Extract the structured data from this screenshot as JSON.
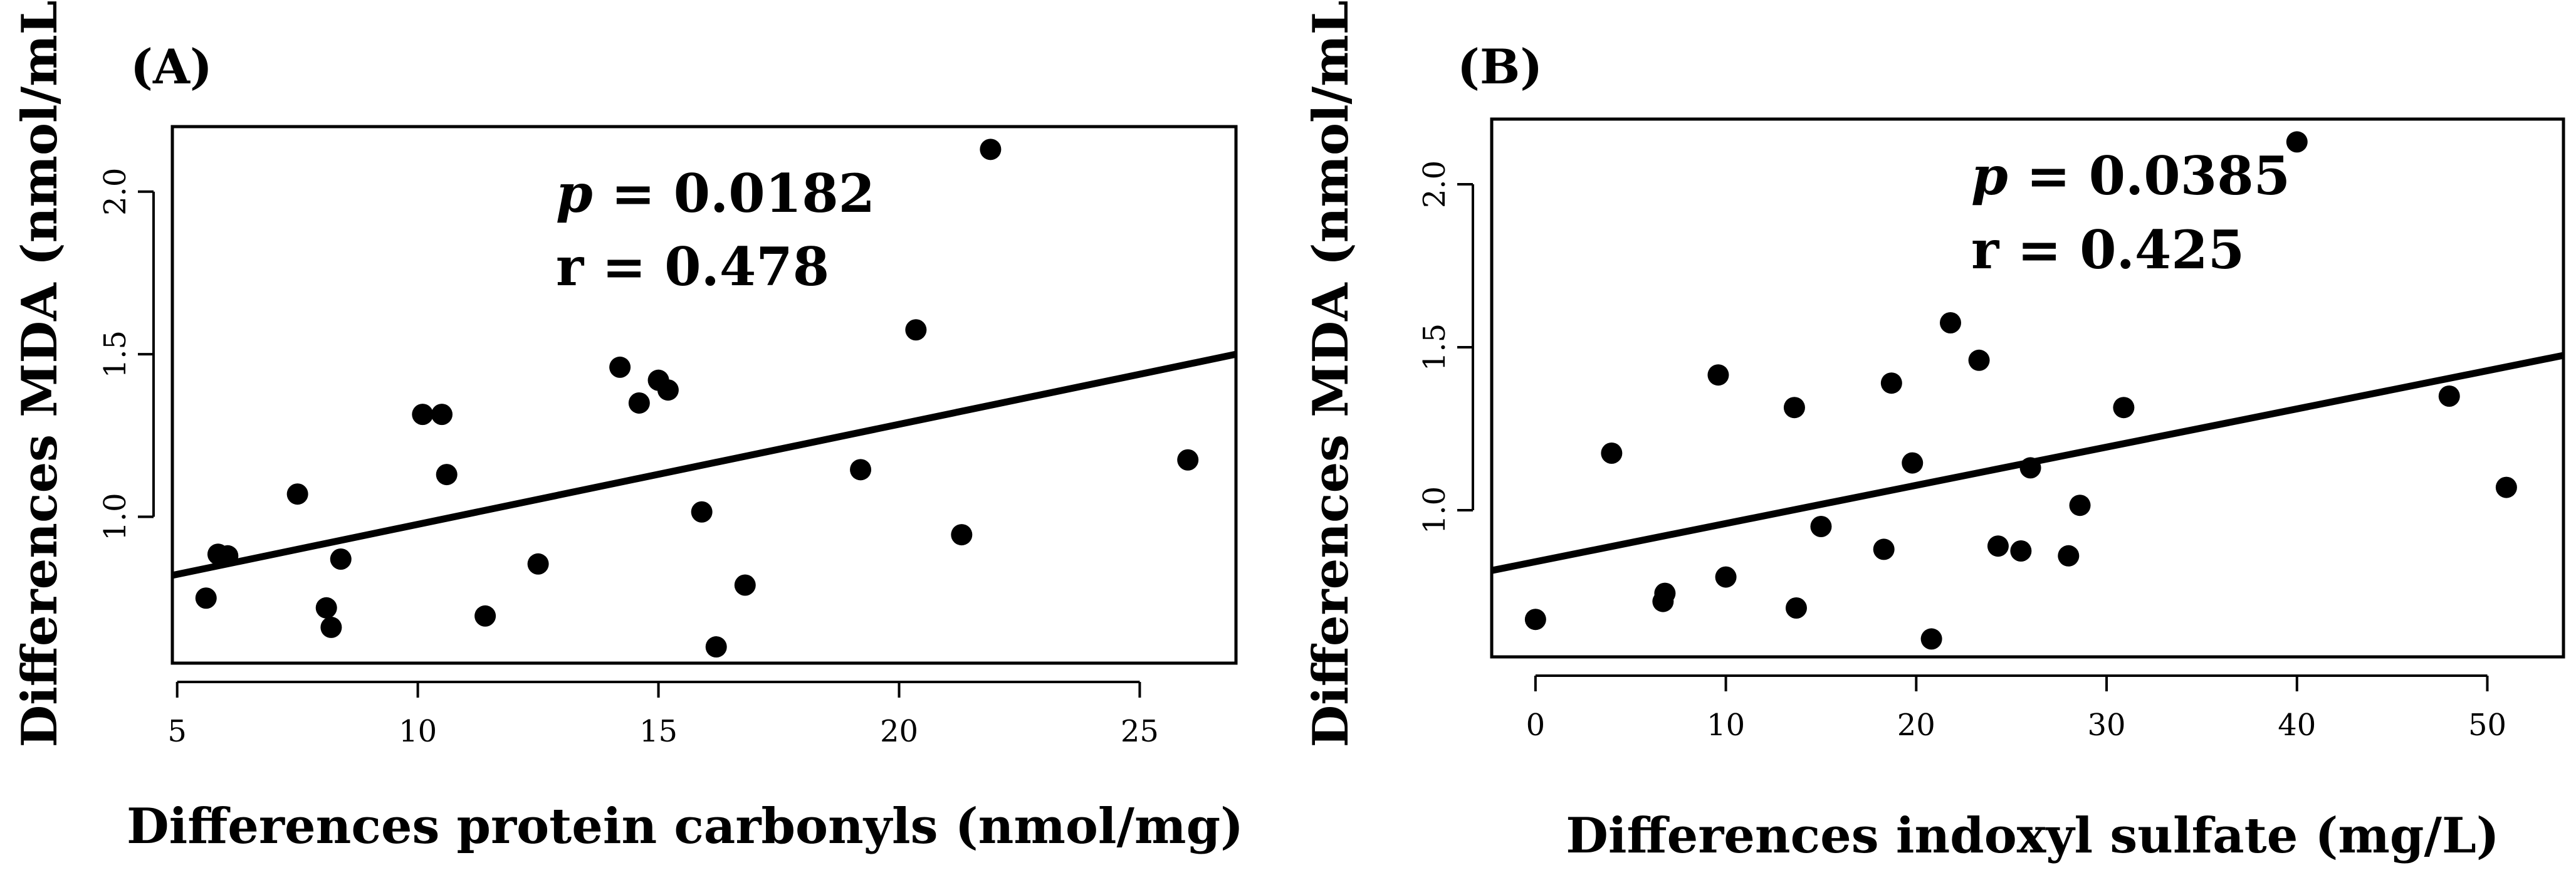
{
  "chart_data": [
    {
      "type": "scatter",
      "panel_label": "(A)",
      "xlabel": "Differences protein carbonyls (nmol/mg)",
      "ylabel": "Differences MDA (nmol/mL)",
      "xlim": [
        4.9,
        27
      ],
      "ylim": [
        0.55,
        2.2
      ],
      "xticks": [
        "5",
        "10",
        "15",
        "20",
        "25"
      ],
      "yticks": [
        "1.0",
        "1.5",
        "2.0"
      ],
      "annotation": {
        "p_symbol": "p",
        "p_text": " = 0.0182",
        "r_text": "r = 0.478"
      },
      "regression": {
        "x": [
          4.9,
          27
        ],
        "y": [
          0.82,
          1.5
        ]
      },
      "x": [
        5.6,
        5.85,
        6.05,
        7.5,
        8.1,
        8.2,
        8.4,
        10.1,
        10.5,
        10.6,
        11.4,
        12.5,
        14.2,
        14.6,
        15.0,
        15.2,
        15.9,
        16.2,
        16.8,
        19.2,
        20.35,
        21.3,
        21.9,
        26.0
      ],
      "y": [
        0.75,
        0.885,
        0.88,
        1.07,
        0.72,
        0.66,
        0.87,
        1.315,
        1.315,
        1.13,
        0.695,
        0.855,
        1.46,
        1.35,
        1.42,
        1.39,
        1.015,
        0.6,
        0.79,
        1.145,
        1.575,
        0.945,
        2.13,
        1.175
      ]
    },
    {
      "type": "scatter",
      "panel_label": "(B)",
      "xlabel": "Differences indoxyl sulfate (mg/L)",
      "ylabel": "Differences MDA (nmol/mL)",
      "xlim": [
        -2.3,
        54
      ],
      "ylim": [
        0.55,
        2.2
      ],
      "xticks": [
        "0",
        "10",
        "20",
        "30",
        "40",
        "50"
      ],
      "yticks": [
        "1.0",
        "1.5",
        "2.0"
      ],
      "annotation": {
        "p_symbol": "p",
        "p_text": " = 0.0385",
        "r_text": "r = 0.425"
      },
      "regression": {
        "x": [
          -2.3,
          54
        ],
        "y": [
          0.815,
          1.475
        ]
      },
      "x": [
        0,
        4,
        6.7,
        6.8,
        9.6,
        10,
        13.6,
        13.7,
        15,
        18.3,
        18.7,
        19.8,
        20.8,
        21.8,
        23.3,
        24.3,
        25.5,
        26,
        28,
        28.6,
        30.9,
        40,
        48,
        51
      ],
      "y": [
        0.665,
        1.175,
        0.72,
        0.745,
        1.415,
        0.795,
        1.315,
        0.7,
        0.95,
        0.88,
        1.39,
        1.145,
        0.605,
        1.575,
        1.46,
        0.89,
        0.875,
        1.13,
        0.86,
        1.015,
        1.315,
        2.13,
        1.35,
        1.07
      ]
    }
  ]
}
